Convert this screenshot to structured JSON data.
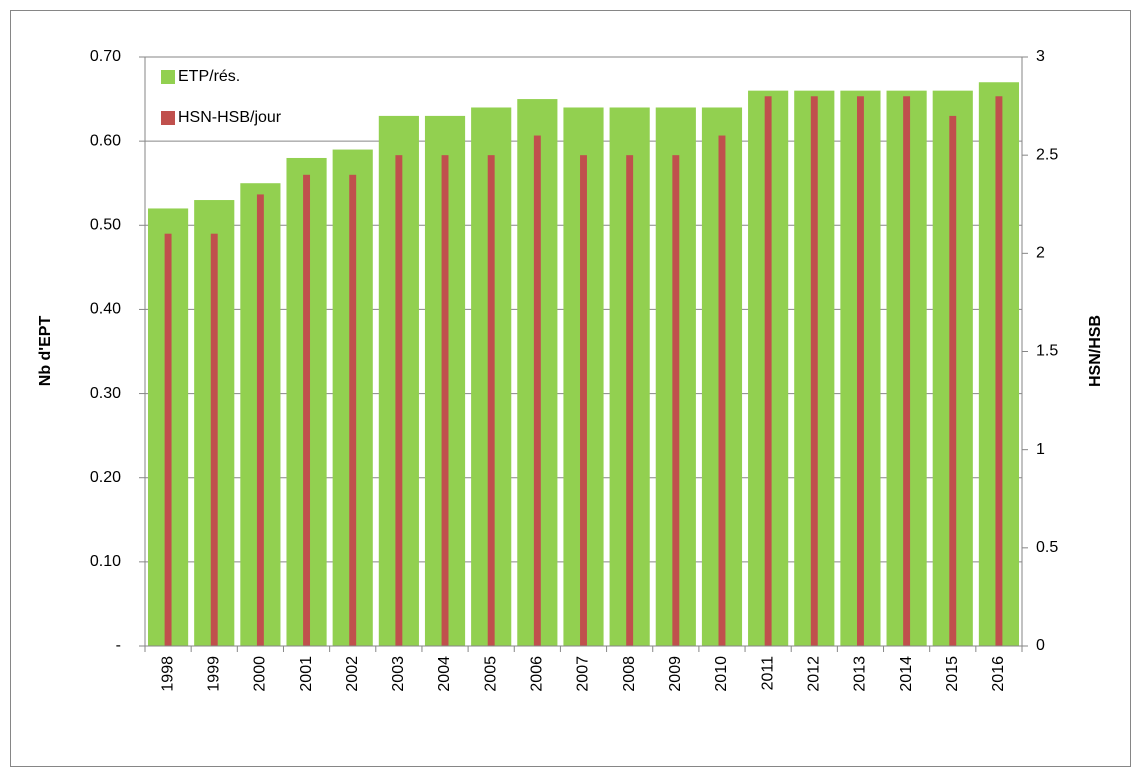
{
  "chart_data": {
    "type": "bar",
    "categories": [
      "1998",
      "1999",
      "2000",
      "2001",
      "2002",
      "2003",
      "2004",
      "2005",
      "2006",
      "2007",
      "2008",
      "2009",
      "2010",
      "2011",
      "2012",
      "2013",
      "2014",
      "2015",
      "2016"
    ],
    "series": [
      {
        "name": "ETP/rés.",
        "color": "#92d050",
        "values": [
          0.52,
          0.53,
          0.55,
          0.58,
          0.59,
          0.63,
          0.63,
          0.64,
          0.65,
          0.64,
          0.64,
          0.64,
          0.64,
          0.66,
          0.66,
          0.66,
          0.66,
          0.66,
          0.67
        ]
      },
      {
        "name": "HSN-HSB/jour",
        "color": "#c0504d",
        "axis": "y2",
        "values": [
          2.1,
          2.1,
          2.3,
          2.4,
          2.4,
          2.5,
          2.5,
          2.5,
          2.6,
          2.5,
          2.5,
          2.5,
          2.6,
          2.8,
          2.8,
          2.8,
          2.8,
          2.7,
          2.8
        ]
      }
    ],
    "y_label": "Nb d'EPT",
    "y2_label": "HSN/HSB",
    "ylim": [
      0,
      0.7
    ],
    "yticks": [
      {
        "value": 0,
        "label": "-"
      },
      {
        "value": 0.1,
        "label": "0.10"
      },
      {
        "value": 0.2,
        "label": "0.20"
      },
      {
        "value": 0.3,
        "label": "0.30"
      },
      {
        "value": 0.4,
        "label": "0.40"
      },
      {
        "value": 0.5,
        "label": "0.50"
      },
      {
        "value": 0.6,
        "label": "0.60"
      },
      {
        "value": 0.7,
        "label": "0.70"
      }
    ],
    "y2lim": [
      0,
      3
    ],
    "y2ticks": [
      0,
      0.5,
      1,
      1.5,
      2,
      2.5,
      3
    ],
    "grid": true,
    "legend": "top-left"
  }
}
